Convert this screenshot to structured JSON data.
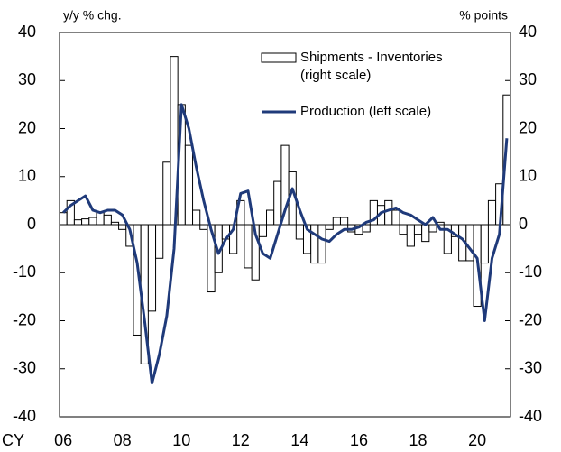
{
  "chart_data": {
    "type": "bar_line",
    "y_label": "y/y % chg.",
    "y2_label": "% points",
    "x_prefix": "CY",
    "categories": [
      "06",
      null,
      null,
      null,
      null,
      null,
      null,
      null,
      "08",
      null,
      null,
      null,
      null,
      null,
      null,
      null,
      "10",
      null,
      null,
      null,
      null,
      null,
      null,
      null,
      "12",
      null,
      null,
      null,
      null,
      null,
      null,
      null,
      "14",
      null,
      null,
      null,
      null,
      null,
      null,
      null,
      "16",
      null,
      null,
      null,
      null,
      null,
      null,
      null,
      "18",
      null,
      null,
      null,
      null,
      null,
      null,
      null,
      "20",
      null,
      null,
      null,
      null
    ],
    "series": [
      {
        "name": "Shipments - Inventories",
        "legend_note": "(right scale)",
        "type": "bar",
        "axis": "y2",
        "color": "#ffffff",
        "values": [
          2.5,
          5,
          1,
          1.2,
          1.5,
          2.5,
          2,
          0.5,
          -1,
          -4.5,
          -23,
          -29,
          -18,
          -7,
          13,
          35,
          25,
          16.5,
          3,
          -1,
          -14,
          -10,
          -3,
          -6,
          5,
          -9,
          -11.5,
          -2.5,
          3,
          9,
          16.5,
          11,
          -3,
          -6,
          -8,
          -8,
          -1,
          1.5,
          1.5,
          -1.5,
          -2,
          -1.5,
          5,
          4,
          5,
          3,
          -2,
          -4.5,
          -2,
          -3.5,
          -1.5,
          0.5,
          -6,
          -2.5,
          -7.5,
          -7.5,
          -17,
          -8,
          5,
          8.5,
          27
        ]
      },
      {
        "name": "Production (left scale)",
        "type": "line",
        "axis": "y",
        "color": "#1f3a7a",
        "values": [
          2.5,
          4,
          5,
          6,
          3,
          2.5,
          3,
          3,
          2,
          -1,
          -8,
          -20,
          -33,
          -27,
          -19,
          -5,
          25,
          20,
          12,
          5,
          -1,
          -6,
          -3,
          -1,
          6.5,
          7,
          -2,
          -6,
          -7,
          -2,
          3,
          7.5,
          3,
          -1,
          -2,
          -3,
          -3.5,
          -2,
          -1,
          -1,
          -0.5,
          0.5,
          1,
          2.5,
          3,
          3.5,
          2.5,
          2,
          1,
          0,
          1.5,
          -1,
          -1,
          -2,
          -3,
          -5,
          -7,
          -20,
          -7,
          -2,
          18
        ]
      }
    ],
    "ylim": [
      -40,
      40
    ],
    "yticks": [
      -40,
      -30,
      -20,
      -10,
      0,
      10,
      20,
      30,
      40
    ],
    "y2lim": [
      -40,
      40
    ],
    "y2ticks": [
      -40,
      -30,
      -20,
      -10,
      0,
      10,
      20,
      30,
      40
    ],
    "legend": "upper right"
  }
}
